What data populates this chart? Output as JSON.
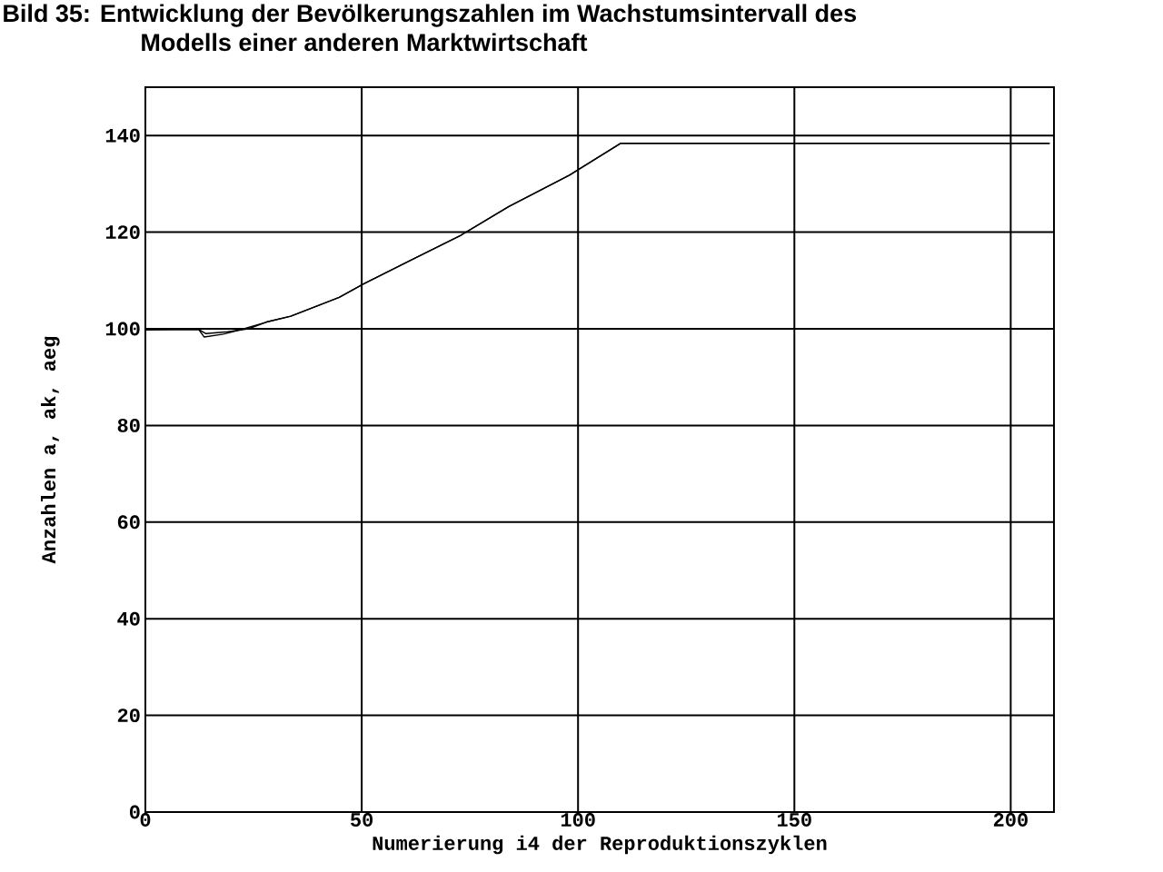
{
  "chart_data": {
    "type": "line",
    "title": "Bild 35: Entwicklung der Bevölkerungszahlen im Wachstumsintervall des Modells einer anderen Marktwirtschaft",
    "xlabel": "Numerierung i4 der Reproduktionszyklen",
    "ylabel": "Anzahlen a, ak, aeg",
    "xlim": [
      0,
      210
    ],
    "xticks": [
      0,
      50,
      100,
      150,
      200
    ],
    "ylim": [
      0,
      150
    ],
    "yticks": [
      0,
      20,
      40,
      60,
      80,
      100,
      120,
      140
    ],
    "grid": true,
    "marker": "none",
    "line_style": "solid",
    "series": [
      {
        "color": "#000000",
        "x": [
          0,
          12.3,
          13.6,
          18,
          22.4,
          28,
          33.6,
          44.8,
          50.4,
          61.6,
          72.8,
          84,
          98,
          109.9,
          209
        ],
        "values": [
          99.8,
          99.9,
          98.3,
          98.9,
          99.9,
          101.4,
          102.6,
          106.5,
          109.3,
          114.3,
          119.3,
          125.3,
          131.8,
          138.4,
          138.4
        ]
      },
      {
        "color": "#000000",
        "x": [
          0,
          12.3,
          14,
          19,
          23.8,
          28,
          33.6,
          44.8,
          50.4,
          61.6,
          72.8,
          84,
          98,
          109.9,
          209
        ],
        "values": [
          99.8,
          99.9,
          99,
          99.4,
          100,
          101.4,
          102.6,
          106.5,
          109.3,
          114.3,
          119.3,
          125.3,
          131.8,
          138.4,
          138.4
        ]
      }
    ]
  }
}
